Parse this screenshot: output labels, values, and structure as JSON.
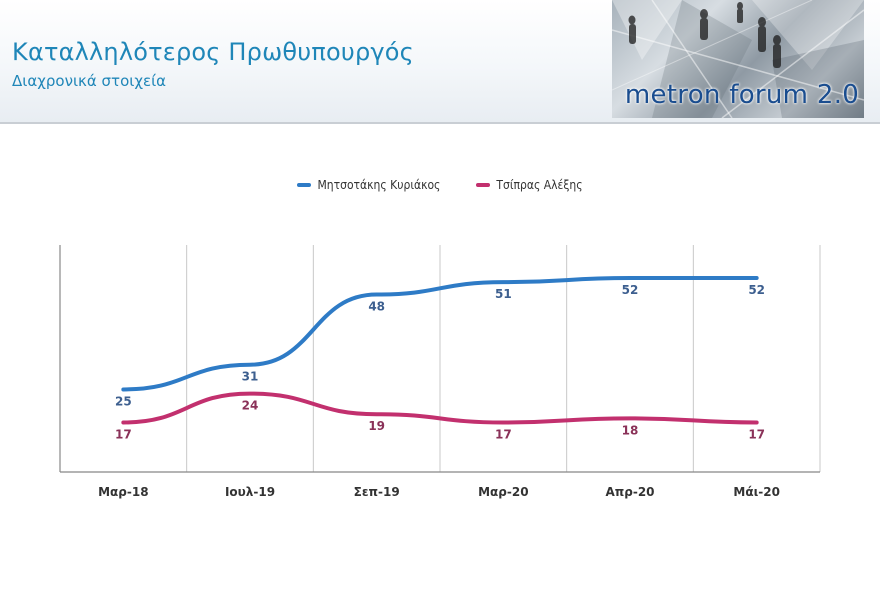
{
  "header": {
    "title": "Καταλληλότερος Πρωθυπουργός",
    "subtitle": "Διαχρονικά στοιχεία",
    "logo_text": "metron forum 2.0"
  },
  "colors": {
    "series_blue": "#2e7bc6",
    "series_pink": "#c2306e",
    "label_blue": "#3d5f8f",
    "label_pink": "#8a3158"
  },
  "chart_data": {
    "type": "line",
    "title": "",
    "xlabel": "",
    "ylabel": "",
    "categories": [
      "Μαρ-18",
      "Ιουλ-19",
      "Σεπ-19",
      "Μαρ-20",
      "Απρ-20",
      "Μάι-20"
    ],
    "ylim": [
      5,
      60
    ],
    "grid": "vertical",
    "legend_position": "top-center",
    "series": [
      {
        "name": "Μητσοτάκης Κυριάκος",
        "values": [
          25,
          31,
          48,
          51,
          52,
          52
        ]
      },
      {
        "name": "Τσίπρας Αλέξης",
        "values": [
          17,
          24,
          19,
          17,
          18,
          17
        ]
      }
    ]
  }
}
